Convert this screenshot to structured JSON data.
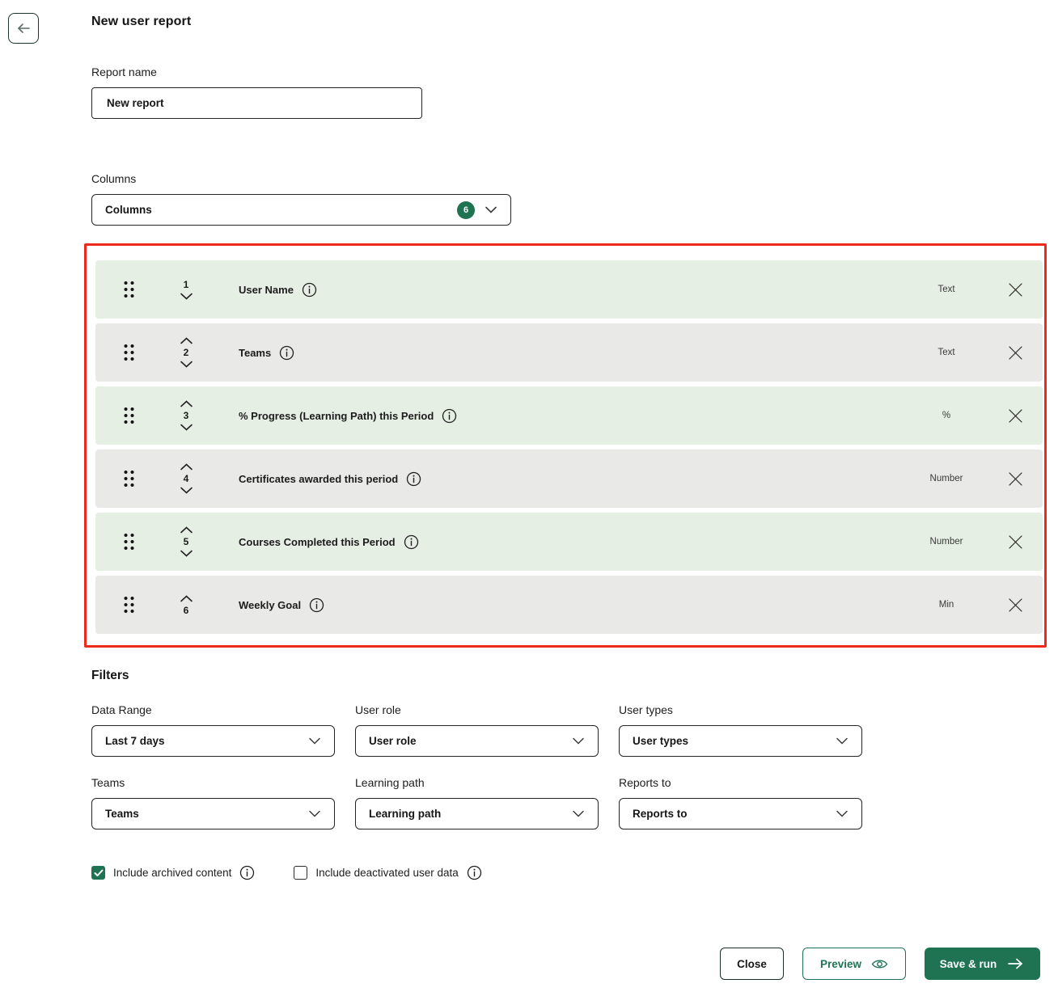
{
  "header": {
    "title": "New user report"
  },
  "report_name": {
    "label": "Report name",
    "value": "New report"
  },
  "columns": {
    "label": "Columns",
    "dropdown_value": "Columns",
    "count_badge": "6",
    "rows": [
      {
        "order": "1",
        "label": "User Name",
        "type": "Text",
        "can_move_up": false,
        "can_move_down": true
      },
      {
        "order": "2",
        "label": "Teams",
        "type": "Text",
        "can_move_up": true,
        "can_move_down": true
      },
      {
        "order": "3",
        "label": "% Progress (Learning Path) this Period",
        "type": "%",
        "can_move_up": true,
        "can_move_down": true
      },
      {
        "order": "4",
        "label": "Certificates awarded this period",
        "type": "Number",
        "can_move_up": true,
        "can_move_down": true
      },
      {
        "order": "5",
        "label": "Courses Completed this Period",
        "type": "Number",
        "can_move_up": true,
        "can_move_down": true
      },
      {
        "order": "6",
        "label": "Weekly Goal",
        "type": "Min",
        "can_move_up": true,
        "can_move_down": false
      }
    ]
  },
  "filters": {
    "title": "Filters",
    "fields": [
      {
        "name": "data-range",
        "label": "Data Range",
        "value": "Last 7 days"
      },
      {
        "name": "user-role",
        "label": "User role",
        "value": "User role"
      },
      {
        "name": "user-types",
        "label": "User types",
        "value": "User types"
      },
      {
        "name": "teams",
        "label": "Teams",
        "value": "Teams"
      },
      {
        "name": "learning-path",
        "label": "Learning path",
        "value": "Learning path"
      },
      {
        "name": "reports-to",
        "label": "Reports to",
        "value": "Reports to"
      }
    ],
    "checkboxes": [
      {
        "name": "include-archived-content",
        "label": "Include archived content",
        "checked": true
      },
      {
        "name": "include-deactivated-user-data",
        "label": "Include deactivated user data",
        "checked": false
      }
    ]
  },
  "footer": {
    "close_label": "Close",
    "preview_label": "Preview",
    "save_label": "Save & run"
  },
  "colors": {
    "accent_green": "#1f7353",
    "row_green": "#e5efe3",
    "row_gray": "#e9e9e7",
    "highlight_red": "#ee2a1d"
  }
}
